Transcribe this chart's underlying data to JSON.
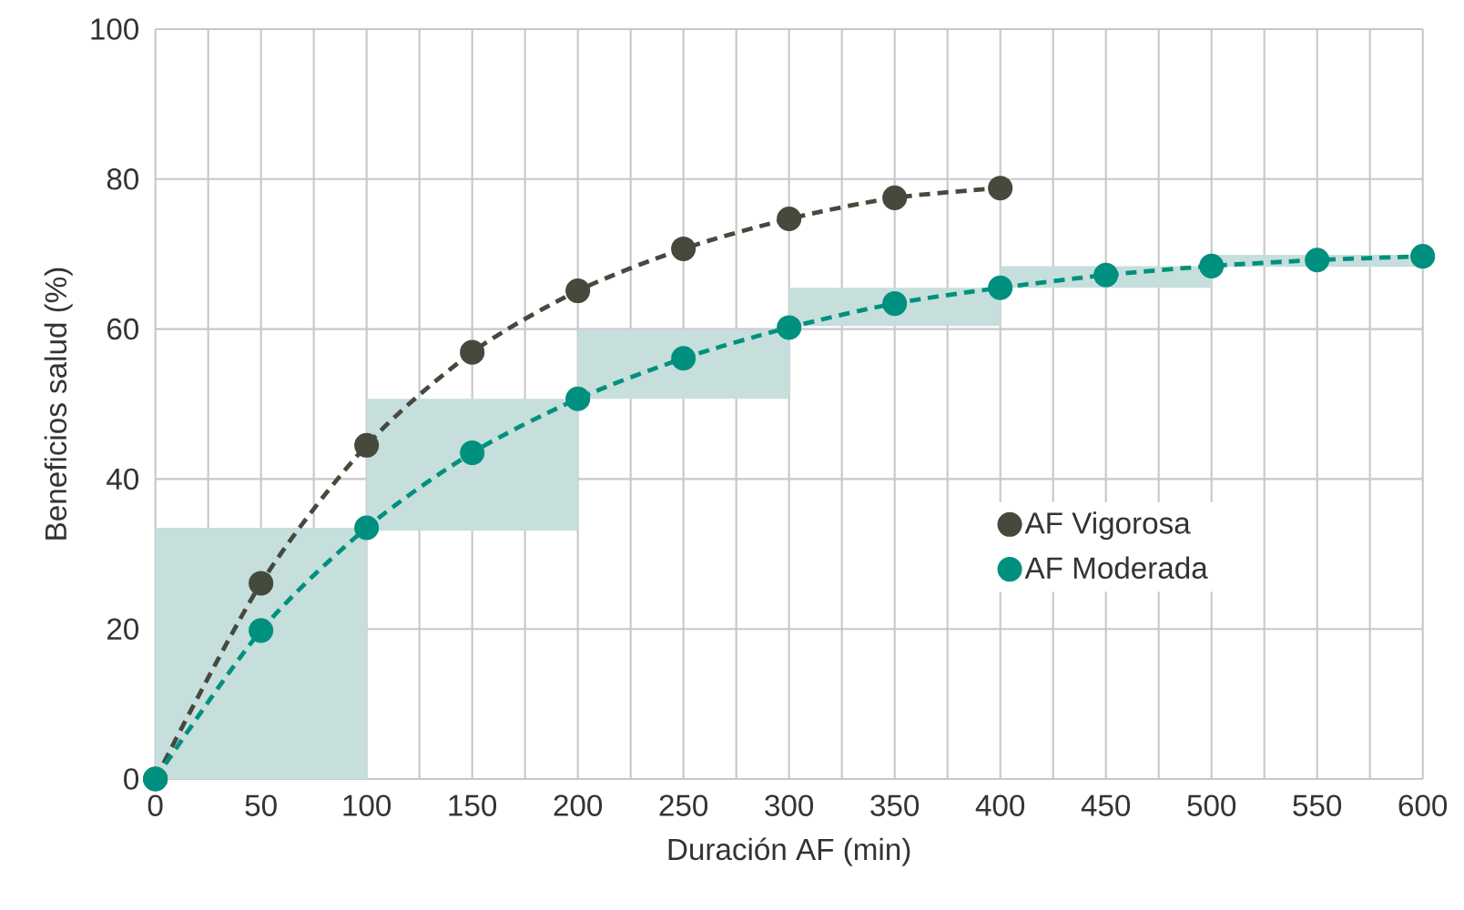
{
  "chart_data": {
    "type": "line",
    "xlabel": "Duración AF (min)",
    "ylabel": "Beneficios salud (%)",
    "xlim": [
      0,
      600
    ],
    "ylim": [
      0,
      100
    ],
    "xticks": [
      0,
      {
        "value": 25,
        "label": null
      },
      50,
      {
        "value": 75,
        "label": null
      },
      100,
      {
        "value": 125,
        "label": null
      },
      150,
      {
        "value": 175,
        "label": null
      },
      200,
      {
        "value": 225,
        "label": null
      },
      250,
      {
        "value": 275,
        "label": null
      },
      300,
      {
        "value": 325,
        "label": null
      },
      350,
      {
        "value": 375,
        "label": null
      },
      400,
      {
        "value": 425,
        "label": null
      },
      450,
      {
        "value": 475,
        "label": null
      },
      500,
      {
        "value": 525,
        "label": null
      },
      550,
      {
        "value": 575,
        "label": null
      },
      600
    ],
    "yticks": [
      0,
      20,
      40,
      60,
      80,
      100
    ],
    "grid": true,
    "legend": "right",
    "marker": "circle",
    "line_style": "dashed",
    "series": [
      {
        "type": "bar",
        "color": "#c6dfdc",
        "x": [
          50,
          150,
          250,
          350,
          450,
          550
        ],
        "base": [
          0,
          33.1,
          50.7,
          60.4,
          65.5,
          68.3
        ],
        "values": [
          33.5,
          17.6,
          9.2,
          5.1,
          2.9,
          1.6
        ]
      },
      {
        "name": "AF Vigorosa",
        "color": "#454a3c",
        "x": [
          0,
          50,
          100,
          150,
          200,
          250,
          300,
          350,
          400
        ],
        "values": [
          0,
          26.1,
          44.5,
          56.9,
          65.1,
          70.7,
          74.7,
          77.5,
          78.8
        ]
      },
      {
        "name": "AF Moderada",
        "color": "#00907f",
        "x": [
          0,
          50,
          100,
          150,
          200,
          250,
          300,
          350,
          400,
          450,
          500,
          550,
          600
        ],
        "values": [
          0,
          19.8,
          33.5,
          43.5,
          50.7,
          56.1,
          60.2,
          63.4,
          65.5,
          67.2,
          68.4,
          69.2,
          69.7
        ]
      }
    ]
  }
}
